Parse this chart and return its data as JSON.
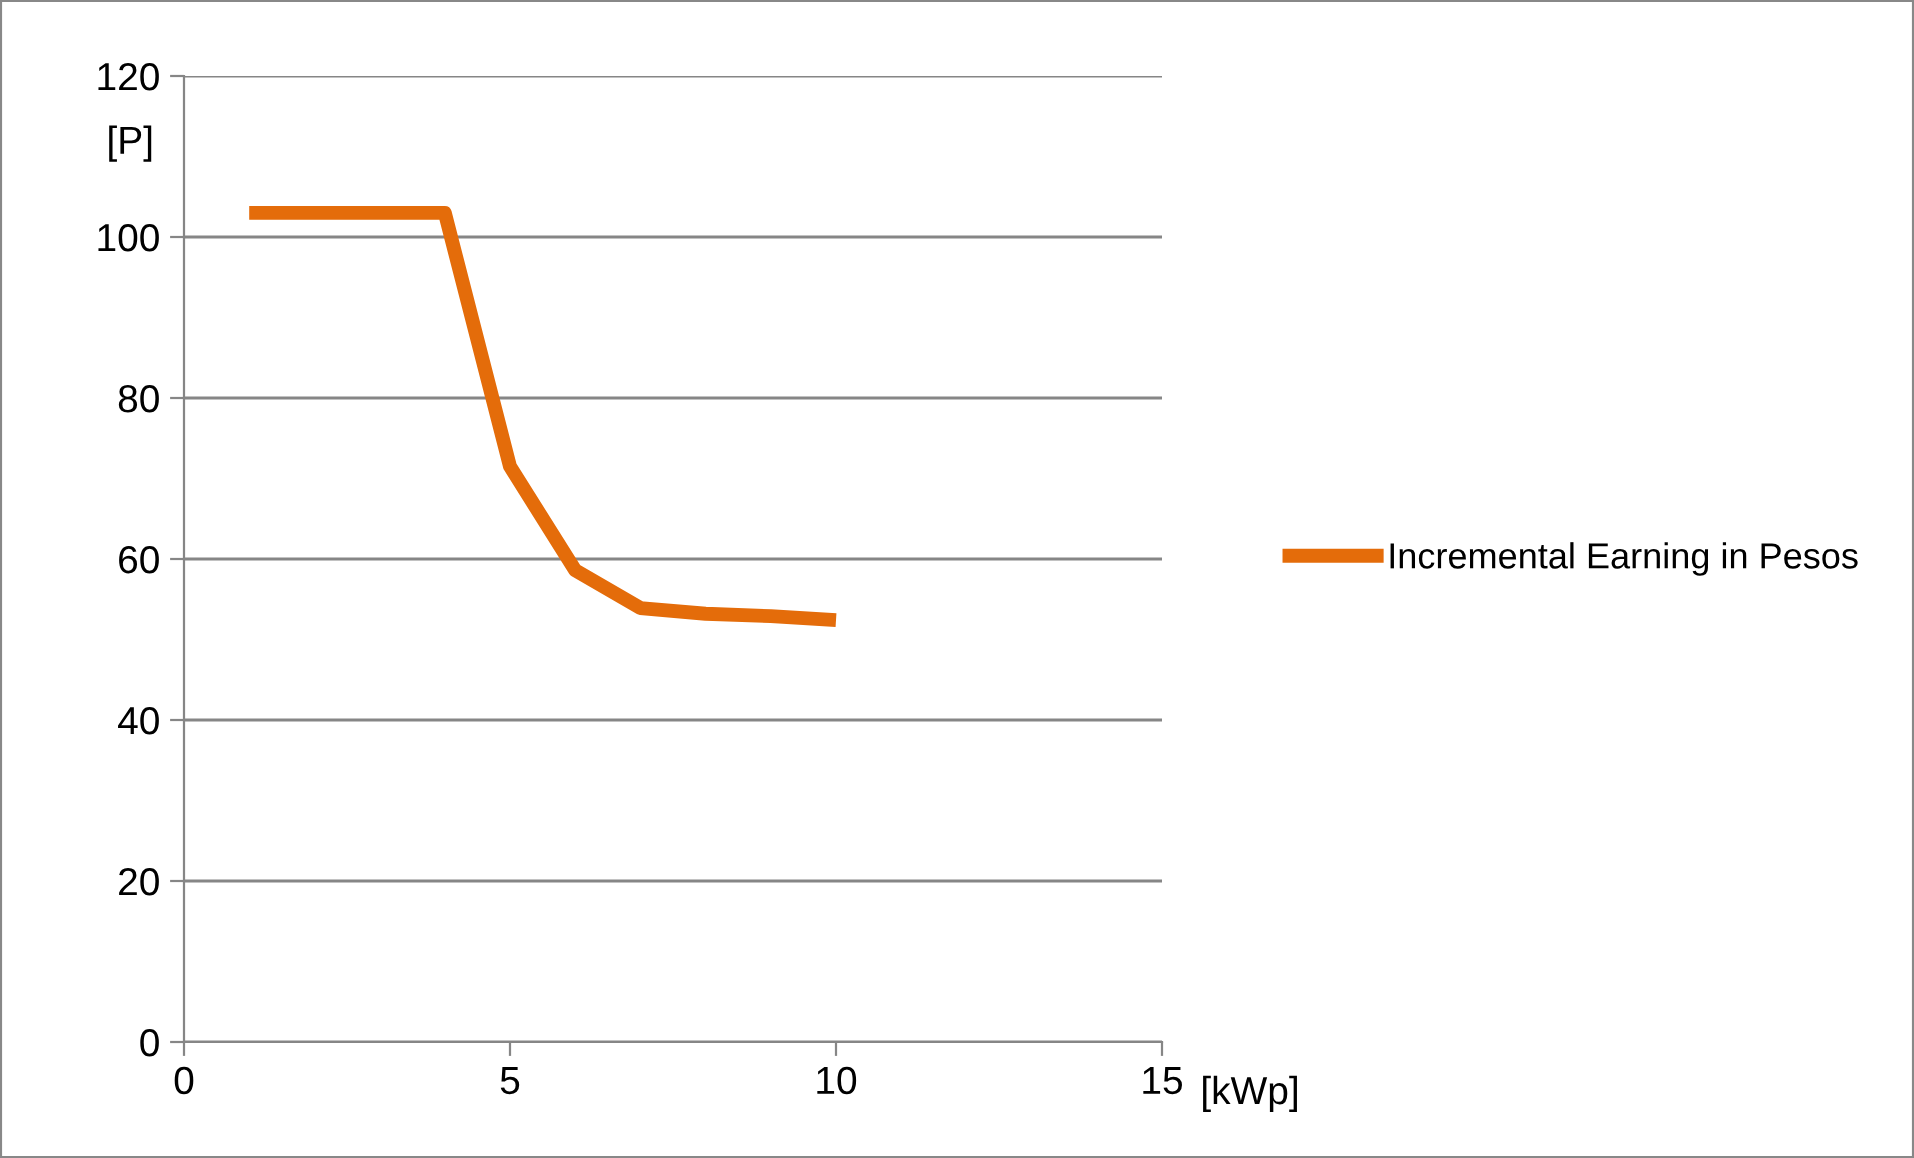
{
  "chart_data": {
    "type": "line",
    "xlabel": "[kWp]",
    "ylabel": "[P]",
    "x": [
      1,
      2,
      3,
      4,
      5,
      6,
      7,
      8,
      9,
      10
    ],
    "series": [
      {
        "name": "Incremental Earning in Pesos",
        "color": "#e46c0a",
        "values": [
          103,
          103,
          103,
          103,
          71.5,
          58.6,
          53.9,
          53.2,
          52.9,
          52.4
        ]
      }
    ],
    "xlim": [
      0,
      15
    ],
    "xticks": [
      0,
      5,
      10,
      15
    ],
    "ylim": [
      0,
      120
    ],
    "yticks": [
      0,
      20,
      40,
      60,
      80,
      100,
      120
    ],
    "grid": "y",
    "legend": "right",
    "marker": "none",
    "line_style": "solid"
  }
}
